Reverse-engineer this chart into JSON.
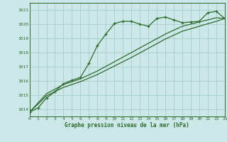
{
  "title": "Graphe pression niveau de la mer (hPa)",
  "bg_color": "#cce8e8",
  "grid_color": "#aacccc",
  "line_color": "#2d6b2d",
  "x_min": 0,
  "x_max": 23,
  "y_min": 1013.5,
  "y_max": 1021.5,
  "y_ticks": [
    1014,
    1015,
    1016,
    1017,
    1018,
    1019,
    1020,
    1021
  ],
  "x_ticks": [
    0,
    1,
    2,
    3,
    4,
    5,
    6,
    7,
    8,
    9,
    10,
    11,
    12,
    13,
    14,
    15,
    16,
    17,
    18,
    19,
    20,
    21,
    22,
    23
  ],
  "series1": [
    [
      0,
      1013.8
    ],
    [
      1,
      1014.1
    ],
    [
      2,
      1014.8
    ],
    [
      3,
      1015.25
    ],
    [
      4,
      1015.8
    ],
    [
      5,
      1016.05
    ],
    [
      6,
      1016.25
    ],
    [
      7,
      1017.25
    ],
    [
      8,
      1018.5
    ],
    [
      9,
      1019.3
    ],
    [
      10,
      1020.05
    ],
    [
      11,
      1020.2
    ],
    [
      12,
      1020.2
    ],
    [
      13,
      1020.0
    ],
    [
      14,
      1019.85
    ],
    [
      15,
      1020.4
    ],
    [
      16,
      1020.5
    ],
    [
      17,
      1020.3
    ],
    [
      18,
      1020.1
    ],
    [
      19,
      1020.15
    ],
    [
      20,
      1020.2
    ],
    [
      21,
      1020.8
    ],
    [
      22,
      1020.9
    ],
    [
      23,
      1020.4
    ]
  ],
  "series2": [
    [
      0,
      1013.8
    ],
    [
      2,
      1015.1
    ],
    [
      4,
      1015.75
    ],
    [
      6,
      1016.15
    ],
    [
      8,
      1016.7
    ],
    [
      10,
      1017.35
    ],
    [
      12,
      1018.0
    ],
    [
      14,
      1018.65
    ],
    [
      16,
      1019.3
    ],
    [
      18,
      1019.85
    ],
    [
      20,
      1020.15
    ],
    [
      22,
      1020.45
    ],
    [
      23,
      1020.4
    ]
  ],
  "series3": [
    [
      0,
      1013.8
    ],
    [
      2,
      1014.95
    ],
    [
      4,
      1015.55
    ],
    [
      6,
      1015.95
    ],
    [
      8,
      1016.45
    ],
    [
      10,
      1017.05
    ],
    [
      12,
      1017.65
    ],
    [
      14,
      1018.3
    ],
    [
      16,
      1018.95
    ],
    [
      18,
      1019.5
    ],
    [
      20,
      1019.85
    ],
    [
      22,
      1020.2
    ],
    [
      23,
      1020.4
    ]
  ]
}
